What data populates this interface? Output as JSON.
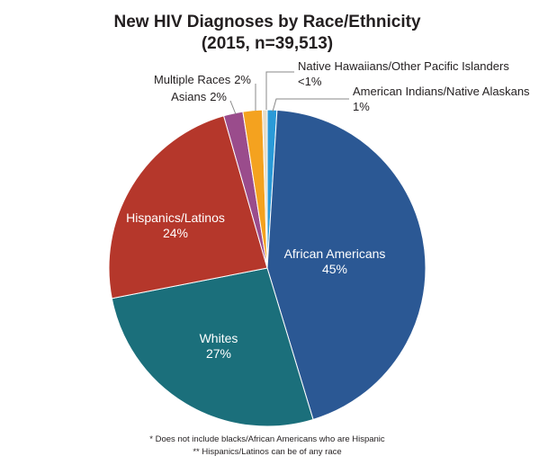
{
  "chart_data": {
    "type": "pie",
    "title": "New HIV Diagnoses by Race/Ethnicity",
    "subtitle": "(2015, n=39,513)",
    "categories": [
      "American Indians/Native Alaskans",
      "African Americans",
      "Whites",
      "Hispanics/Latinos",
      "Asians",
      "Multiple Races",
      "Native Hawaiians/Other Pacific Islanders"
    ],
    "values": [
      1,
      45,
      27,
      24,
      2,
      2,
      0.5
    ],
    "value_labels": [
      "1%",
      "45%",
      "27%",
      "24%",
      "2%",
      "2%",
      "<1%"
    ],
    "colors": [
      "#2a9ad8",
      "#2b5894",
      "#1b6f7b",
      "#b5372b",
      "#9a4c8c",
      "#f4a21f",
      "#e6dcc6"
    ],
    "notes": [
      "* Does not include blacks/African Americans who are Hispanic",
      "** Hispanics/Latinos can be of any race"
    ]
  }
}
